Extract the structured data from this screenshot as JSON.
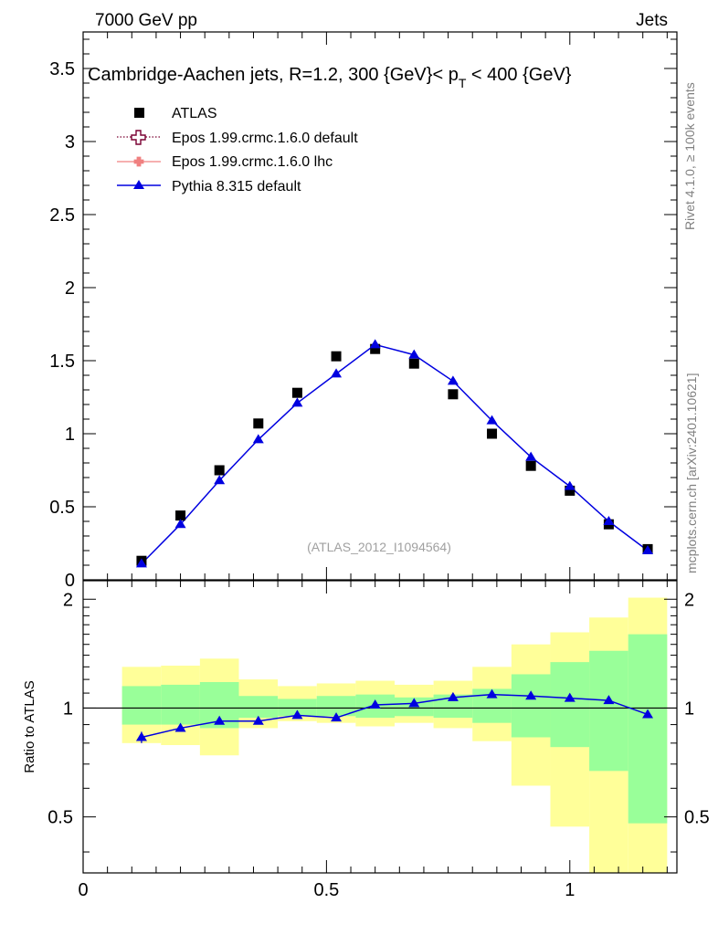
{
  "header": {
    "left": "7000 GeV pp",
    "right": "Jets"
  },
  "title": {
    "main": "Cambridge-Aachen jets, R=1.2,  300 {GeV}< p",
    "sub": "T",
    "tail": " < 400 {GeV}"
  },
  "side_labels": {
    "rivet": "Rivet 4.1.0, ≥ 100k events",
    "mcplots": "mcplots.cern.ch [arXiv:2401.10621]"
  },
  "watermark": "(ATLAS_2012_I1094564)",
  "colors": {
    "atlas": "#000000",
    "epos_default": "#7a0032",
    "epos_lhc": "#f08080",
    "pythia": "#0000e0",
    "band_outer": "#ffff99",
    "band_inner": "#99ff99"
  },
  "chart_data": [
    {
      "type": "scatter",
      "panel": "main",
      "title": "Cambridge-Aachen jets, R=1.2,  300 {GeV}< p_T < 400 {GeV}",
      "xlim": [
        0,
        1.22
      ],
      "ylim": [
        0,
        3.75
      ],
      "yticks": [
        0,
        0.5,
        1,
        1.5,
        2,
        2.5,
        3,
        3.5
      ],
      "ytick_labels": [
        "0",
        "0.5",
        "1",
        "1.5",
        "2",
        "2.5",
        "3",
        "3.5"
      ],
      "legend_position": "top-left",
      "legend": [
        {
          "name": "ATLAS",
          "style": "square"
        },
        {
          "name": "Epos 1.99.crmc.1.6.0 default",
          "style": "open-cross-dotted"
        },
        {
          "name": "Epos 1.99.crmc.1.6.0 lhc",
          "style": "cross-line"
        },
        {
          "name": "Pythia 8.315 default",
          "style": "triangle-line"
        }
      ],
      "series": [
        {
          "name": "ATLAS",
          "x": [
            0.12,
            0.2,
            0.28,
            0.36,
            0.44,
            0.52,
            0.6,
            0.68,
            0.76,
            0.84,
            0.92,
            1.0,
            1.08,
            1.16
          ],
          "values": [
            0.13,
            0.44,
            0.75,
            1.07,
            1.28,
            1.53,
            1.58,
            1.48,
            1.27,
            1.0,
            0.78,
            0.61,
            0.38,
            0.21
          ]
        },
        {
          "name": "Pythia 8.315 default",
          "x": [
            0.12,
            0.2,
            0.28,
            0.36,
            0.44,
            0.52,
            0.6,
            0.68,
            0.76,
            0.84,
            0.92,
            1.0,
            1.08,
            1.16
          ],
          "values": [
            0.11,
            0.38,
            0.68,
            0.96,
            1.21,
            1.41,
            1.61,
            1.54,
            1.36,
            1.09,
            0.84,
            0.64,
            0.4,
            0.2
          ]
        }
      ]
    },
    {
      "type": "line",
      "panel": "ratio",
      "ylabel": "Ratio to ATLAS",
      "xlim": [
        0,
        1.22
      ],
      "ylim": [
        0.35,
        2.25
      ],
      "xticks": [
        0,
        0.5,
        1
      ],
      "xtick_labels": [
        "0",
        "0.5",
        "1"
      ],
      "yticks": [
        0.5,
        1,
        2
      ],
      "ytick_labels": [
        "0.5",
        "1",
        "2"
      ],
      "bins": [
        [
          0.08,
          0.16
        ],
        [
          0.16,
          0.24
        ],
        [
          0.24,
          0.32
        ],
        [
          0.32,
          0.4
        ],
        [
          0.4,
          0.48
        ],
        [
          0.48,
          0.56
        ],
        [
          0.56,
          0.64
        ],
        [
          0.64,
          0.72
        ],
        [
          0.72,
          0.8
        ],
        [
          0.8,
          0.88
        ],
        [
          0.88,
          0.96
        ],
        [
          0.96,
          1.04
        ],
        [
          1.04,
          1.12
        ],
        [
          1.12,
          1.2
        ]
      ],
      "band_outer": {
        "low": [
          0.8,
          0.79,
          0.74,
          0.88,
          0.92,
          0.91,
          0.89,
          0.91,
          0.88,
          0.81,
          0.61,
          0.47,
          0.35,
          0.35
        ],
        "high": [
          1.3,
          1.31,
          1.37,
          1.2,
          1.15,
          1.17,
          1.19,
          1.16,
          1.19,
          1.3,
          1.5,
          1.62,
          1.78,
          2.02
        ]
      },
      "band_inner": {
        "low": [
          0.9,
          0.9,
          0.88,
          0.94,
          0.95,
          0.95,
          0.94,
          0.95,
          0.94,
          0.91,
          0.83,
          0.78,
          0.67,
          0.48
        ],
        "high": [
          1.15,
          1.16,
          1.18,
          1.08,
          1.06,
          1.08,
          1.09,
          1.07,
          1.09,
          1.13,
          1.24,
          1.34,
          1.44,
          1.6
        ]
      },
      "reference": 1,
      "series": [
        {
          "name": "Pythia 8.315 default",
          "x": [
            0.12,
            0.2,
            0.28,
            0.36,
            0.44,
            0.52,
            0.6,
            0.68,
            0.76,
            0.84,
            0.92,
            1.0,
            1.08,
            1.16
          ],
          "values": [
            0.83,
            0.88,
            0.92,
            0.92,
            0.955,
            0.94,
            1.02,
            1.03,
            1.07,
            1.09,
            1.08,
            1.065,
            1.05,
            0.96
          ],
          "err": [
            0.03,
            0,
            0,
            0,
            0,
            0,
            0,
            0,
            0,
            0,
            0,
            0,
            0,
            0
          ]
        }
      ]
    }
  ]
}
